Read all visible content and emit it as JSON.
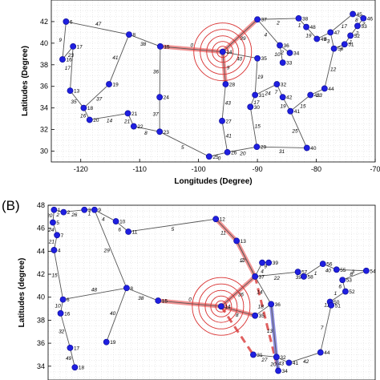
{
  "chart_data": [
    {
      "type": "scatter",
      "panel": "",
      "xlabel": "Longitudes (Degree)",
      "ylabel": "Latitudes (Degree)",
      "xlim": [
        -125,
        -70
      ],
      "ylim": [
        29,
        44
      ],
      "xticks": [
        -120,
        -110,
        -100,
        -90,
        -80,
        -70
      ],
      "yticks": [
        30,
        32,
        34,
        36,
        38,
        40,
        42
      ],
      "grid": true,
      "nodes": [
        {
          "id": "15",
          "x": -106.5,
          "y": 39.7
        },
        {
          "id": "8",
          "x": -111.8,
          "y": 40.8
        },
        {
          "id": "17",
          "x": -121.3,
          "y": 39.7
        },
        {
          "id": "16",
          "x": -123.1,
          "y": 38.5
        },
        {
          "id": "6",
          "x": -122.5,
          "y": 42.0
        },
        {
          "id": "19",
          "x": -115.2,
          "y": 36.2
        },
        {
          "id": "13",
          "x": -121.8,
          "y": 35.6
        },
        {
          "id": "18",
          "x": -119.5,
          "y": 34.0
        },
        {
          "id": "20",
          "x": -118.5,
          "y": 32.9
        },
        {
          "id": "21",
          "x": -112.0,
          "y": 33.5
        },
        {
          "id": "22",
          "x": -111.0,
          "y": 32.3
        },
        {
          "id": "23",
          "x": -106.6,
          "y": 31.8
        },
        {
          "id": "24",
          "x": -106.6,
          "y": 35.0
        },
        {
          "id": "25",
          "x": -98.2,
          "y": 29.5
        },
        {
          "id": "14",
          "x": -95.9,
          "y": 39.2
        },
        {
          "id": "28",
          "x": -95.4,
          "y": 36.2
        },
        {
          "id": "27",
          "x": -96.0,
          "y": 32.8
        },
        {
          "id": "26",
          "x": -95.1,
          "y": 29.9
        },
        {
          "id": "29",
          "x": -90.1,
          "y": 30.4
        },
        {
          "id": "37",
          "x": -90.0,
          "y": 42.2
        },
        {
          "id": "35",
          "x": -90.0,
          "y": 38.6
        },
        {
          "id": "31",
          "x": -90.4,
          "y": 35.2
        },
        {
          "id": "30",
          "x": -91.2,
          "y": 34.1
        },
        {
          "id": "33",
          "x": -85.7,
          "y": 38.2
        },
        {
          "id": "34",
          "x": -84.5,
          "y": 39.1
        },
        {
          "id": "36",
          "x": -86.2,
          "y": 39.8
        },
        {
          "id": "32",
          "x": -86.7,
          "y": 36.2
        },
        {
          "id": "42",
          "x": -85.7,
          "y": 35.0
        },
        {
          "id": "41",
          "x": -84.4,
          "y": 33.7
        },
        {
          "id": "40",
          "x": -81.6,
          "y": 30.3
        },
        {
          "id": "43",
          "x": -81.0,
          "y": 35.2
        },
        {
          "id": "44",
          "x": -78.6,
          "y": 35.8
        },
        {
          "id": "38",
          "x": -83.0,
          "y": 42.3
        },
        {
          "id": "48",
          "x": -81.7,
          "y": 41.5
        },
        {
          "id": "49",
          "x": -79.9,
          "y": 40.4
        },
        {
          "id": "47",
          "x": -77.6,
          "y": 41.0
        },
        {
          "id": "50",
          "x": -77.0,
          "y": 39.5
        },
        {
          "id": "51",
          "x": -75.2,
          "y": 39.9
        },
        {
          "id": "52",
          "x": -74.2,
          "y": 40.7
        },
        {
          "id": "53",
          "x": -73.0,
          "y": 41.6
        },
        {
          "id": "45",
          "x": -73.8,
          "y": 42.7
        },
        {
          "id": "46",
          "x": -72.0,
          "y": 42.3
        }
      ],
      "edges": [
        {
          "from": "8",
          "to": "15",
          "weight": "38"
        },
        {
          "from": "8",
          "to": "6",
          "weight": "47"
        },
        {
          "from": "8",
          "to": "19",
          "weight": "41"
        },
        {
          "from": "6",
          "to": "16",
          "weight": "9"
        },
        {
          "from": "16",
          "to": "17",
          "weight": "23"
        },
        {
          "from": "17",
          "to": "13",
          "weight": "17"
        },
        {
          "from": "13",
          "to": "18",
          "weight": "35"
        },
        {
          "from": "18",
          "to": "20",
          "weight": "16"
        },
        {
          "from": "18",
          "to": "19",
          "weight": "37"
        },
        {
          "from": "20",
          "to": "21",
          "weight": "14"
        },
        {
          "from": "21",
          "to": "22",
          "weight": "21"
        },
        {
          "from": "22",
          "to": "23",
          "weight": "8"
        },
        {
          "from": "15",
          "to": "24",
          "weight": "36"
        },
        {
          "from": "24",
          "to": "23",
          "weight": "37"
        },
        {
          "from": "23",
          "to": "25",
          "weight": "5"
        },
        {
          "from": "25",
          "to": "26",
          "weight": "0"
        },
        {
          "from": "26",
          "to": "27",
          "weight": "41"
        },
        {
          "from": "27",
          "to": "28",
          "weight": "43"
        },
        {
          "from": "28",
          "to": "14",
          "weight": "9"
        },
        {
          "from": "14",
          "to": "15",
          "weight": "0"
        },
        {
          "from": "14",
          "to": "37",
          "weight": "39"
        },
        {
          "from": "14",
          "to": "35",
          "weight": "40"
        },
        {
          "from": "26",
          "to": "29",
          "weight": "20"
        },
        {
          "from": "29",
          "to": "40",
          "weight": "31"
        },
        {
          "from": "29",
          "to": "30",
          "weight": "15"
        },
        {
          "from": "30",
          "to": "31",
          "weight": "17"
        },
        {
          "from": "31",
          "to": "35",
          "weight": "19"
        },
        {
          "from": "31",
          "to": "32",
          "weight": "24"
        },
        {
          "from": "32",
          "to": "42",
          "weight": "7"
        },
        {
          "from": "42",
          "to": "41",
          "weight": "19"
        },
        {
          "from": "41",
          "to": "40",
          "weight": "25"
        },
        {
          "from": "41",
          "to": "43",
          "weight": "15"
        },
        {
          "from": "43",
          "to": "44",
          "weight": "13"
        },
        {
          "from": "44",
          "to": "50",
          "weight": "12"
        },
        {
          "from": "37",
          "to": "36",
          "weight": "4"
        },
        {
          "from": "36",
          "to": "34",
          "weight": "2"
        },
        {
          "from": "36",
          "to": "33",
          "weight": "10"
        },
        {
          "from": "37",
          "to": "38",
          "weight": "2"
        },
        {
          "from": "38",
          "to": "48",
          "weight": "1"
        },
        {
          "from": "48",
          "to": "49",
          "weight": "19"
        },
        {
          "from": "49",
          "to": "47",
          "weight": "6"
        },
        {
          "from": "47",
          "to": "50",
          "weight": "3"
        },
        {
          "from": "47",
          "to": "45",
          "weight": "17"
        },
        {
          "from": "50",
          "to": "51",
          "weight": "7"
        },
        {
          "from": "51",
          "to": "52",
          "weight": "1"
        },
        {
          "from": "52",
          "to": "53",
          "weight": "2"
        },
        {
          "from": "53",
          "to": "46",
          "weight": "7"
        },
        {
          "from": "45",
          "to": "46",
          "weight": "8"
        }
      ],
      "epicenter": {
        "x": -95.9,
        "y": 39.2
      },
      "highlighted_edges": [
        {
          "from": "14",
          "to": "15"
        },
        {
          "from": "14",
          "to": "37"
        },
        {
          "from": "14",
          "to": "28"
        }
      ]
    },
    {
      "type": "scatter",
      "panel": "(B)",
      "xlabel": "",
      "ylabel": "Latitudes (degree)",
      "xlim": [
        -125,
        -70
      ],
      "ylim": [
        32.8,
        48
      ],
      "xticks": [],
      "yticks": [
        34,
        36,
        38,
        40,
        42,
        44,
        46,
        48
      ],
      "grid": true,
      "nodes": [
        {
          "id": "1",
          "x": -124.0,
          "y": 47.6
        },
        {
          "id": "2",
          "x": -122.4,
          "y": 47.4
        },
        {
          "id": "3",
          "x": -118.9,
          "y": 47.6
        },
        {
          "id": "9",
          "x": -117.2,
          "y": 47.6
        },
        {
          "id": "10",
          "x": -113.6,
          "y": 46.6
        },
        {
          "id": "11",
          "x": -111.5,
          "y": 45.7
        },
        {
          "id": "5",
          "x": -124.2,
          "y": 46.5
        },
        {
          "id": "7",
          "x": -123.5,
          "y": 45.4
        },
        {
          "id": "4",
          "x": -124.0,
          "y": 44.1
        },
        {
          "id": "12",
          "x": -96.8,
          "y": 46.8
        },
        {
          "id": "13",
          "x": -93.3,
          "y": 44.9
        },
        {
          "id": "8",
          "x": -111.8,
          "y": 40.8
        },
        {
          "id": "15",
          "x": -106.5,
          "y": 39.7
        },
        {
          "id": "14",
          "x": -95.9,
          "y": 39.2
        },
        {
          "id": "6",
          "x": -122.5,
          "y": 39.8
        },
        {
          "id": "16",
          "x": -122.9,
          "y": 38.6
        },
        {
          "id": "17",
          "x": -121.3,
          "y": 35.6
        },
        {
          "id": "18",
          "x": -120.5,
          "y": 33.9
        },
        {
          "id": "19",
          "x": -115.2,
          "y": 36.1
        },
        {
          "id": "37",
          "x": -90.2,
          "y": 41.8
        },
        {
          "id": "38",
          "x": -89.0,
          "y": 43.0
        },
        {
          "id": "39",
          "x": -87.9,
          "y": 43.0
        },
        {
          "id": "35",
          "x": -90.2,
          "y": 38.4
        },
        {
          "id": "36",
          "x": -87.5,
          "y": 39.4
        },
        {
          "id": "31",
          "x": -90.5,
          "y": 35.0
        },
        {
          "id": "32",
          "x": -86.6,
          "y": 34.8
        },
        {
          "id": "34",
          "x": -86.3,
          "y": 33.6
        },
        {
          "id": "41",
          "x": -84.5,
          "y": 34.3
        },
        {
          "id": "44",
          "x": -79.2,
          "y": 35.2
        },
        {
          "id": "57",
          "x": -83.0,
          "y": 42.2
        },
        {
          "id": "58",
          "x": -82.0,
          "y": 41.8
        },
        {
          "id": "56",
          "x": -78.8,
          "y": 42.9
        },
        {
          "id": "55",
          "x": -76.5,
          "y": 42.4
        },
        {
          "id": "54",
          "x": -71.5,
          "y": 42.3
        },
        {
          "id": "53",
          "x": -75.5,
          "y": 41.5
        },
        {
          "id": "52",
          "x": -75.0,
          "y": 40.5
        },
        {
          "id": "50",
          "x": -77.6,
          "y": 39.6
        },
        {
          "id": "51",
          "x": -77.4,
          "y": 39.3
        }
      ],
      "edges": [
        {
          "from": "1",
          "to": "2",
          "weight": "2"
        },
        {
          "from": "2",
          "to": "3",
          "weight": "26"
        },
        {
          "from": "3",
          "to": "9",
          "weight": "1"
        },
        {
          "from": "9",
          "to": "10",
          "weight": "4"
        },
        {
          "from": "10",
          "to": "11",
          "weight": "6"
        },
        {
          "from": "11",
          "to": "12",
          "weight": "5"
        },
        {
          "from": "12",
          "to": "13",
          "weight": "11"
        },
        {
          "from": "13",
          "to": "37",
          "weight": "12"
        },
        {
          "from": "1",
          "to": "5",
          "weight": "20"
        },
        {
          "from": "5",
          "to": "7",
          "weight": "24"
        },
        {
          "from": "7",
          "to": "4",
          "weight": "21"
        },
        {
          "from": "4",
          "to": "6",
          "weight": "15"
        },
        {
          "from": "9",
          "to": "8",
          "weight": "29"
        },
        {
          "from": "8",
          "to": "6",
          "weight": "48"
        },
        {
          "from": "8",
          "to": "15",
          "weight": "38"
        },
        {
          "from": "8",
          "to": "19",
          "weight": "40"
        },
        {
          "from": "6",
          "to": "16",
          "weight": "10"
        },
        {
          "from": "16",
          "to": "17",
          "weight": "32"
        },
        {
          "from": "17",
          "to": "18",
          "weight": "49"
        },
        {
          "from": "14",
          "to": "15",
          "weight": "0"
        },
        {
          "from": "14",
          "to": "37",
          "weight": "36"
        },
        {
          "from": "13",
          "to": "37",
          "weight": "7"
        },
        {
          "from": "37",
          "to": "38",
          "weight": "4"
        },
        {
          "from": "38",
          "to": "39",
          "weight": "9"
        },
        {
          "from": "37",
          "to": "57",
          "weight": "22"
        },
        {
          "from": "57",
          "to": "58",
          "weight": "39"
        },
        {
          "from": "58",
          "to": "56",
          "weight": "1"
        },
        {
          "from": "56",
          "to": "55",
          "weight": "40"
        },
        {
          "from": "55",
          "to": "54",
          "weight": "8"
        },
        {
          "from": "54",
          "to": "53",
          "weight": "3"
        },
        {
          "from": "53",
          "to": "52",
          "weight": "6"
        },
        {
          "from": "52",
          "to": "50",
          "weight": "1"
        },
        {
          "from": "50",
          "to": "51",
          "weight": "11"
        },
        {
          "from": "51",
          "to": "44",
          "weight": "7"
        },
        {
          "from": "37",
          "to": "36",
          "weight": "14"
        },
        {
          "from": "36",
          "to": "35",
          "weight": "18"
        },
        {
          "from": "36",
          "to": "32",
          "weight": "13"
        },
        {
          "from": "31",
          "to": "32",
          "weight": "27"
        },
        {
          "from": "32",
          "to": "34",
          "weight": "20"
        },
        {
          "from": "32",
          "to": "41",
          "weight": "43"
        },
        {
          "from": "41",
          "to": "44",
          "weight": "42"
        },
        {
          "from": "14",
          "to": "35",
          "weight": "8"
        }
      ],
      "epicenter": {
        "x": -95.9,
        "y": 39.2
      },
      "highlighted_edges": [
        {
          "from": "14",
          "to": "15"
        },
        {
          "from": "14",
          "to": "37"
        },
        {
          "from": "13",
          "to": "37"
        },
        {
          "from": "12",
          "to": "13"
        },
        {
          "from": "14",
          "to": "35"
        }
      ],
      "dashed_edges": [
        {
          "from": "14",
          "to": "31"
        },
        {
          "from": "37",
          "to": "34"
        }
      ],
      "blue_edges": [
        {
          "from": "36",
          "to": "32"
        },
        {
          "from": "32",
          "to": "34"
        }
      ]
    }
  ]
}
